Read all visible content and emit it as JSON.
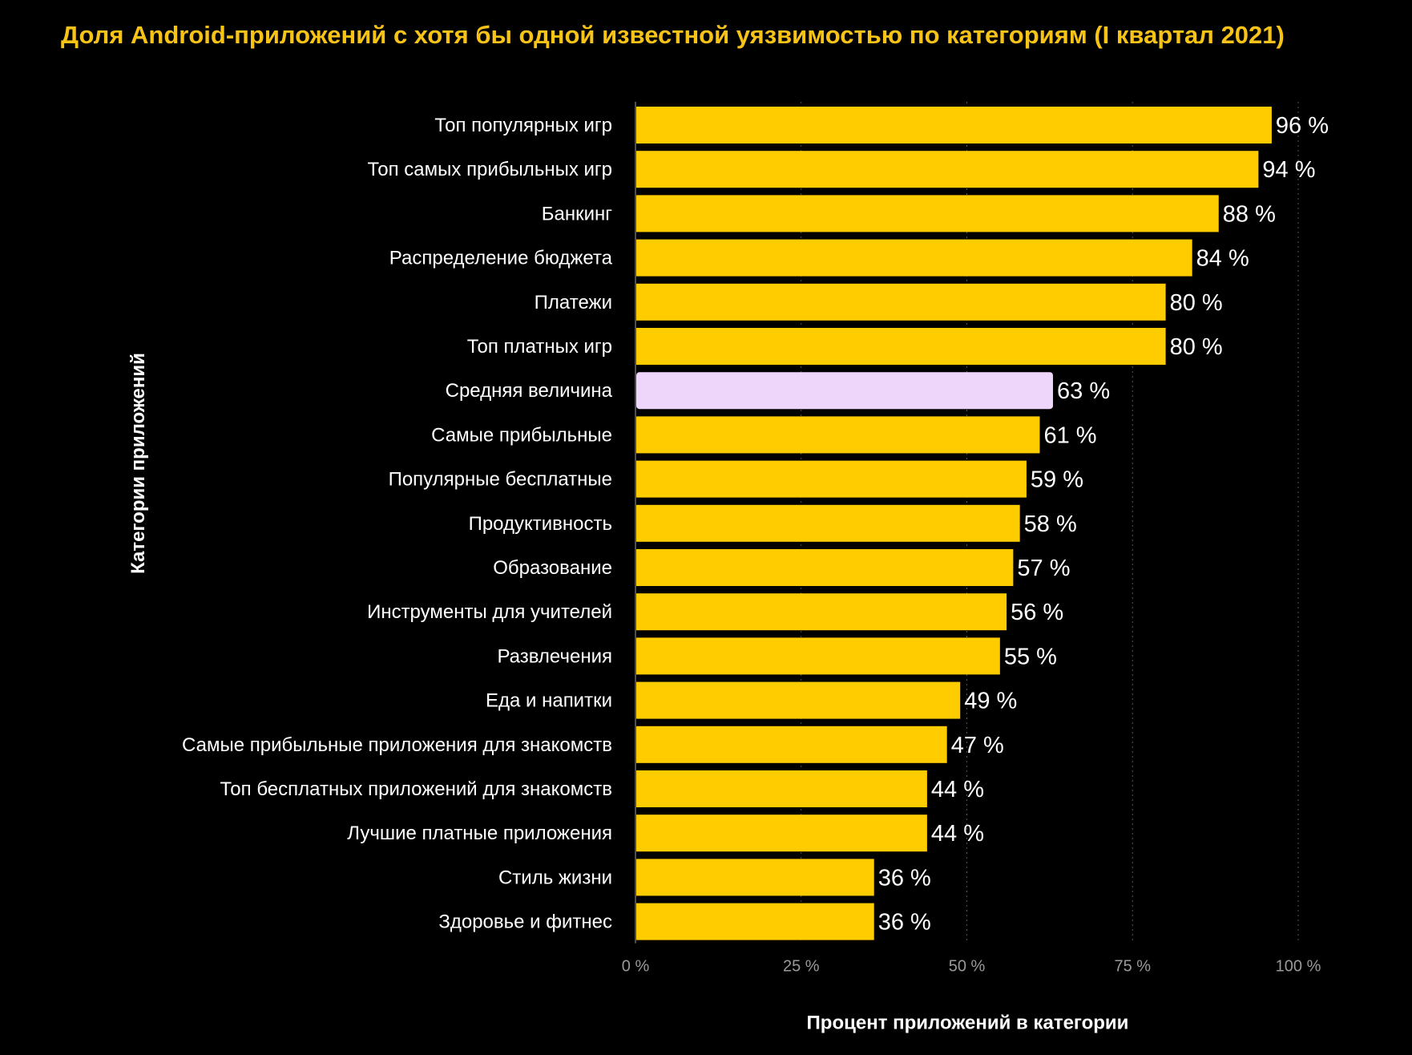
{
  "chart_data": {
    "type": "bar",
    "orientation": "horizontal",
    "title": "Доля Android-приложений с хотя бы одной известной уязвимостью по категориям (I квартал 2021)",
    "xlabel": "Процент приложений в категории",
    "ylabel": "Категории приложений",
    "xlim": [
      0,
      100
    ],
    "x_ticks": [
      {
        "value": 0,
        "label": "0 %"
      },
      {
        "value": 25,
        "label": "25 %"
      },
      {
        "value": 50,
        "label": "50 %"
      },
      {
        "value": 75,
        "label": "75 %"
      },
      {
        "value": 100,
        "label": "100 %"
      }
    ],
    "grid": "vertical dotted",
    "bar_color": "#FFCC00",
    "highlight_color": "#EDD6FA",
    "categories": [
      "Топ популярных игр",
      "Топ самых прибыльных игр",
      "Банкинг",
      "Распределение бюджета",
      "Платежи",
      "Топ платных игр",
      "Средняя величина",
      "Самые прибыльные",
      "Популярные бесплатные",
      "Продуктивность",
      "Образование",
      "Инструменты для учителей",
      "Развлечения",
      "Еда и напитки",
      "Самые прибыльные приложения для знакомств",
      "Топ бесплатных приложений для знакомств",
      "Лучшие платные приложения",
      "Стиль жизни",
      "Здоровье и фитнес"
    ],
    "values": [
      96,
      94,
      88,
      84,
      80,
      80,
      63,
      61,
      59,
      58,
      57,
      56,
      55,
      49,
      47,
      44,
      44,
      36,
      36
    ],
    "value_labels": [
      "96 %",
      "94 %",
      "88 %",
      "84 %",
      "80 %",
      "80 %",
      "63 %",
      "61 %",
      "59 %",
      "58 %",
      "57 %",
      "56 %",
      "55 %",
      "49 %",
      "47 %",
      "44 %",
      "44 %",
      "36 %",
      "36 %"
    ],
    "highlighted_category": "Средняя величина"
  }
}
